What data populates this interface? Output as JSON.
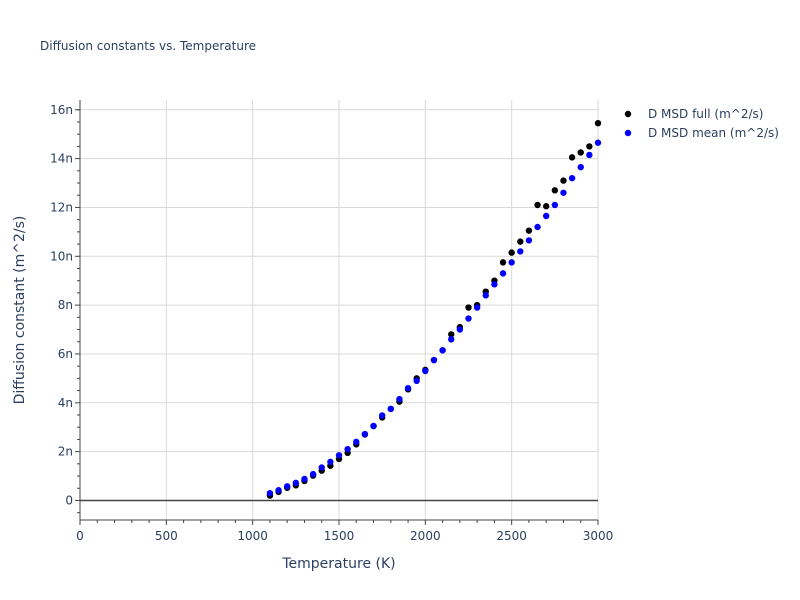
{
  "chart_data": {
    "type": "scatter",
    "title": "Diffusion constants vs. Temperature",
    "xlabel": "Temperature (K)",
    "ylabel": "Diffusion constant (m^2/s)",
    "xlim": [
      0,
      3000
    ],
    "ylim": [
      -0.8,
      16.4
    ],
    "y_unit_suffix": "n",
    "x_ticks": [
      0,
      500,
      1000,
      1500,
      2000,
      2500,
      3000
    ],
    "y_ticks": [
      0,
      2,
      4,
      6,
      8,
      10,
      12,
      14,
      16
    ],
    "y_tick_labels": [
      "0",
      "2n",
      "4n",
      "6n",
      "8n",
      "10n",
      "12n",
      "14n",
      "16n"
    ],
    "grid": true,
    "legend_position": "right",
    "x": [
      1100,
      1150,
      1200,
      1250,
      1300,
      1350,
      1400,
      1450,
      1500,
      1550,
      1600,
      1650,
      1700,
      1750,
      1800,
      1850,
      1900,
      1950,
      2000,
      2050,
      2100,
      2150,
      2200,
      2250,
      2300,
      2350,
      2400,
      2450,
      2500,
      2550,
      2600,
      2650,
      2700,
      2750,
      2800,
      2850,
      2900,
      2950,
      3000
    ],
    "series": [
      {
        "name": "D MSD full (m^2/s)",
        "color": "#000000",
        "values": [
          0.2,
          0.35,
          0.52,
          0.62,
          0.8,
          1.02,
          1.22,
          1.42,
          1.7,
          1.95,
          2.3,
          2.7,
          3.05,
          3.4,
          3.75,
          4.05,
          4.55,
          5.0,
          5.35,
          5.75,
          6.15,
          6.8,
          7.1,
          7.9,
          8.0,
          8.55,
          9.0,
          9.75,
          10.15,
          10.6,
          11.05,
          12.1,
          12.05,
          12.7,
          13.1,
          14.05,
          14.25,
          14.5,
          15.45
        ]
      },
      {
        "name": "D MSD mean (m^2/s)",
        "color": "#0000ff",
        "values": [
          0.3,
          0.42,
          0.58,
          0.72,
          0.88,
          1.08,
          1.35,
          1.58,
          1.85,
          2.1,
          2.4,
          2.72,
          3.05,
          3.48,
          3.75,
          4.15,
          4.6,
          4.9,
          5.3,
          5.75,
          6.15,
          6.6,
          7.0,
          7.45,
          7.9,
          8.4,
          8.85,
          9.3,
          9.75,
          10.2,
          10.65,
          11.2,
          11.65,
          12.1,
          12.6,
          13.2,
          13.65,
          14.15,
          14.65
        ]
      }
    ]
  }
}
